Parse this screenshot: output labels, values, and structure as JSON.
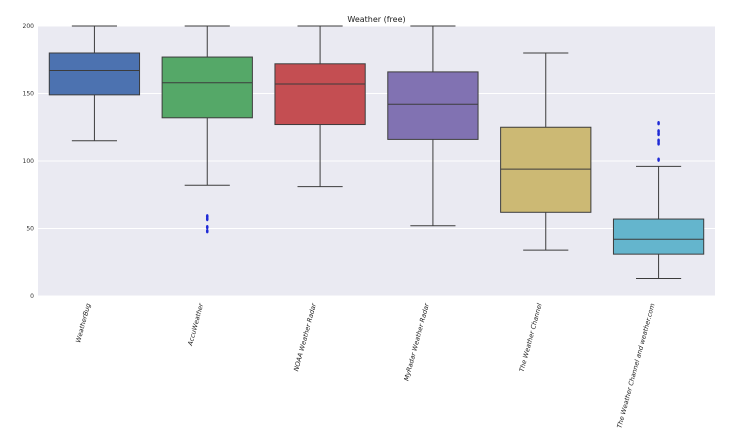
{
  "chart_data": {
    "type": "boxplot",
    "title": "Weather (free)",
    "xlabel": "",
    "ylabel": "",
    "ylim": [
      0,
      200
    ],
    "yticks": [
      0,
      50,
      100,
      150,
      200
    ],
    "grid": true,
    "categories": [
      "WeatherBug",
      "AccuWeather",
      "NOAA Weather Radar",
      "MyRadar Weather Radar",
      "The Weather Channel",
      "The Weather Channel and weather.com"
    ],
    "boxes": [
      {
        "whisker_low": 115,
        "q1": 149,
        "median": 167,
        "q3": 180,
        "whisker_high": 200,
        "outliers": []
      },
      {
        "whisker_low": 82,
        "q1": 132,
        "median": 158,
        "q3": 177,
        "whisker_high": 200,
        "outliers": [
          48,
          51,
          57,
          59
        ]
      },
      {
        "whisker_low": 81,
        "q1": 127,
        "median": 157,
        "q3": 172,
        "whisker_high": 200,
        "outliers": []
      },
      {
        "whisker_low": 52,
        "q1": 116,
        "median": 142,
        "q3": 166,
        "whisker_high": 200,
        "outliers": []
      },
      {
        "whisker_low": 34,
        "q1": 62,
        "median": 94,
        "q3": 125,
        "whisker_high": 180,
        "outliers": []
      },
      {
        "whisker_low": 13,
        "q1": 31,
        "median": 42,
        "q3": 57,
        "whisker_high": 96,
        "outliers": [
          101,
          113,
          115,
          120,
          122,
          128
        ]
      }
    ],
    "colors": [
      "#4c72b0",
      "#55a868",
      "#c44e52",
      "#8172b2",
      "#ccb974",
      "#64b5cd"
    ]
  }
}
